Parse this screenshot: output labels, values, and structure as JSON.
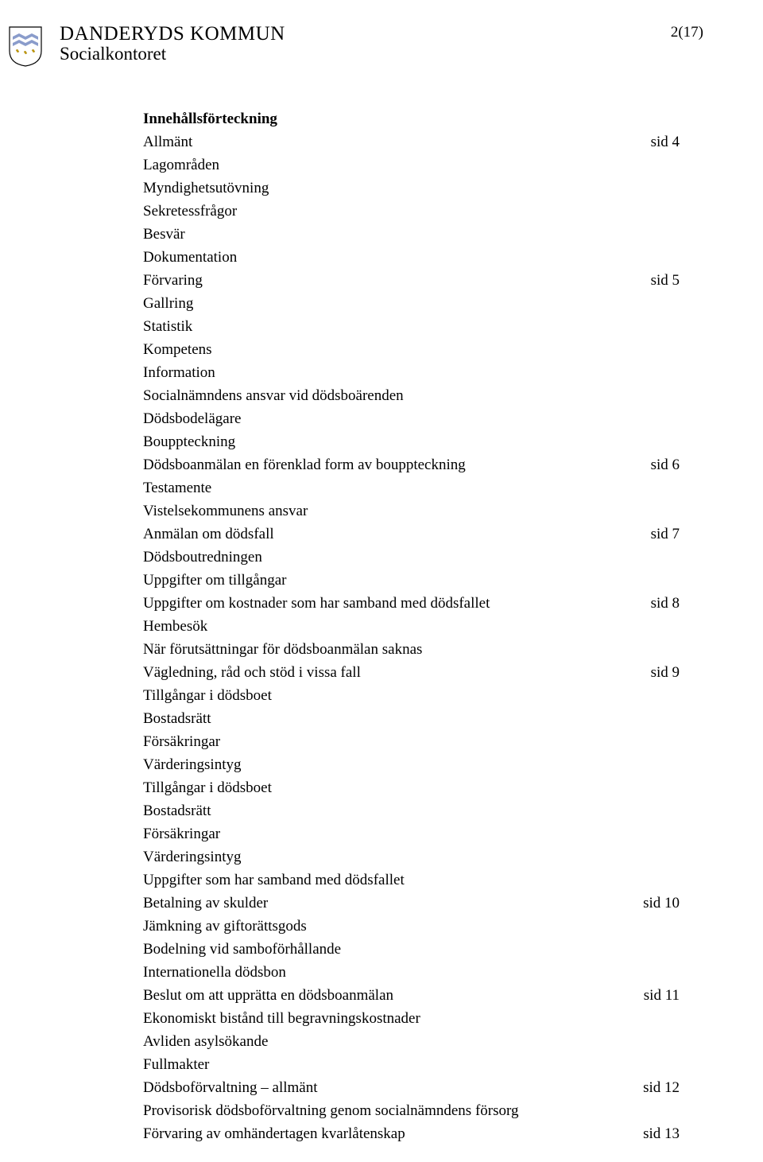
{
  "header": {
    "org_title": "DANDERYDS KOMMUN",
    "org_sub": "Socialkontoret",
    "page_number": "2(17)"
  },
  "crest": {
    "shield_fill": "#ffffff",
    "shield_stroke": "#000000",
    "fleur_color": "#c49a00"
  },
  "toc": {
    "heading": "Innehållsförteckning",
    "entries": [
      {
        "label": "Allmänt",
        "page": "sid 4"
      },
      {
        "label": "Lagområden",
        "page": ""
      },
      {
        "label": "Myndighetsutövning",
        "page": ""
      },
      {
        "label": "Sekretessfrågor",
        "page": ""
      },
      {
        "label": "Besvär",
        "page": ""
      },
      {
        "label": "Dokumentation",
        "page": ""
      },
      {
        "label": "Förvaring",
        "page": "sid 5"
      },
      {
        "label": "Gallring",
        "page": ""
      },
      {
        "label": "Statistik",
        "page": ""
      },
      {
        "label": "Kompetens",
        "page": ""
      },
      {
        "label": "Information",
        "page": ""
      },
      {
        "label": "Socialnämndens ansvar vid dödsboärenden",
        "page": ""
      },
      {
        "label": "Dödsbodelägare",
        "page": ""
      },
      {
        "label": "Bouppteckning",
        "page": ""
      },
      {
        "label": "Dödsboanmälan en förenklad form av bouppteckning",
        "page": "sid 6"
      },
      {
        "label": "Testamente",
        "page": ""
      },
      {
        "label": "Vistelsekommunens ansvar",
        "page": ""
      },
      {
        "label": "Anmälan om dödsfall",
        "page": "sid 7"
      },
      {
        "label": "Dödsboutredningen",
        "page": ""
      },
      {
        "label": "Uppgifter om tillgångar",
        "page": ""
      },
      {
        "label": "Uppgifter om kostnader som har samband med dödsfallet",
        "page": "sid 8"
      },
      {
        "label": "Hembesök",
        "page": ""
      },
      {
        "label": "När förutsättningar för dödsboanmälan saknas",
        "page": ""
      },
      {
        "label": "Vägledning, råd och stöd i vissa fall",
        "page": "sid 9"
      },
      {
        "label": "Tillgångar i dödsboet",
        "page": ""
      },
      {
        "label": "Bostadsrätt",
        "page": ""
      },
      {
        "label": "Försäkringar",
        "page": ""
      },
      {
        "label": "Värderingsintyg",
        "page": ""
      },
      {
        "label": "Tillgångar i dödsboet",
        "page": ""
      },
      {
        "label": "Bostadsrätt",
        "page": ""
      },
      {
        "label": "Försäkringar",
        "page": ""
      },
      {
        "label": "Värderingsintyg",
        "page": ""
      },
      {
        "label": "Uppgifter som har samband med dödsfallet",
        "page": ""
      },
      {
        "label": "Betalning av skulder",
        "page": "sid 10"
      },
      {
        "label": "Jämkning av giftorättsgods",
        "page": ""
      },
      {
        "label": "Bodelning vid samboförhållande",
        "page": ""
      },
      {
        "label": "Internationella dödsbon",
        "page": ""
      },
      {
        "label": "Beslut om att upprätta en dödsboanmälan",
        "page": "sid 11"
      },
      {
        "label": "Ekonomiskt bistånd till begravningskostnader",
        "page": ""
      },
      {
        "label": "Avliden asylsökande",
        "page": ""
      },
      {
        "label": "Fullmakter",
        "page": ""
      },
      {
        "label": "Dödsboförvaltning – allmänt",
        "page": "sid 12"
      },
      {
        "label": "Provisorisk dödsboförvaltning genom socialnämndens försorg",
        "page": ""
      },
      {
        "label": "Förvaring av omhändertagen kvarlåtenskap",
        "page": "sid 13"
      }
    ]
  }
}
